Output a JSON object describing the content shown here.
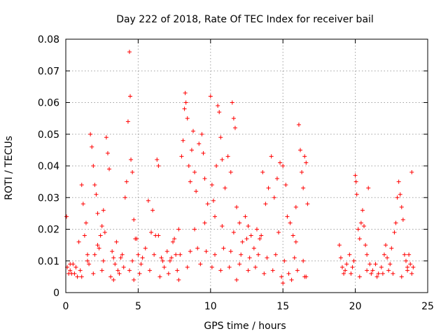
{
  "chart_data": {
    "type": "scatter",
    "title": "Day 222 of 2018, Rate Of TEC Index for receiver bail",
    "xlabel": "GPS time / hours",
    "ylabel": "ROTI / TECUs",
    "xlim": [
      0,
      25
    ],
    "ylim": [
      0,
      0.08
    ],
    "xticks": [
      0,
      5,
      10,
      15,
      20,
      25
    ],
    "xtick_labels": [
      "0",
      "5",
      "10",
      "15",
      "20",
      "25"
    ],
    "yticks": [
      0,
      0.01,
      0.02,
      0.03,
      0.04,
      0.05,
      0.06,
      0.07,
      0.08
    ],
    "ytick_labels": [
      "0",
      "0.01",
      "0.02",
      "0.03",
      "0.04",
      "0.05",
      "0.06",
      "0.07",
      "0.08"
    ],
    "grid": true,
    "marker": "+",
    "color": "#ff0000",
    "series": [
      {
        "name": "ROTI",
        "points": [
          [
            0.05,
            0.024
          ],
          [
            0.1,
            0.008
          ],
          [
            0.2,
            0.006
          ],
          [
            0.3,
            0.007
          ],
          [
            0.5,
            0.009
          ],
          [
            0.6,
            0.006
          ],
          [
            0.8,
            0.005
          ],
          [
            1.0,
            0.007
          ],
          [
            1.1,
            0.034
          ],
          [
            1.2,
            0.028
          ],
          [
            1.3,
            0.018
          ],
          [
            1.4,
            0.022
          ],
          [
            1.5,
            0.012
          ],
          [
            1.6,
            0.009
          ],
          [
            1.7,
            0.05
          ],
          [
            1.8,
            0.046
          ],
          [
            1.9,
            0.04
          ],
          [
            2.0,
            0.034
          ],
          [
            2.1,
            0.031
          ],
          [
            2.2,
            0.025
          ],
          [
            2.3,
            0.014
          ],
          [
            2.4,
            0.018
          ],
          [
            2.5,
            0.021
          ],
          [
            2.6,
            0.026
          ],
          [
            2.7,
            0.019
          ],
          [
            2.8,
            0.049
          ],
          [
            2.9,
            0.044
          ],
          [
            3.0,
            0.039
          ],
          [
            3.2,
            0.013
          ],
          [
            3.4,
            0.009
          ],
          [
            3.6,
            0.007
          ],
          [
            3.8,
            0.011
          ],
          [
            4.0,
            0.008
          ],
          [
            4.1,
            0.03
          ],
          [
            4.2,
            0.035
          ],
          [
            4.3,
            0.054
          ],
          [
            4.4,
            0.076
          ],
          [
            4.45,
            0.062
          ],
          [
            4.5,
            0.042
          ],
          [
            4.6,
            0.038
          ],
          [
            4.7,
            0.023
          ],
          [
            4.8,
            0.017
          ],
          [
            5.0,
            0.012
          ],
          [
            5.2,
            0.009
          ],
          [
            5.5,
            0.014
          ],
          [
            5.7,
            0.029
          ],
          [
            5.9,
            0.019
          ],
          [
            6.0,
            0.026
          ],
          [
            6.2,
            0.018
          ],
          [
            6.3,
            0.042
          ],
          [
            6.4,
            0.04
          ],
          [
            6.6,
            0.011
          ],
          [
            6.8,
            0.008
          ],
          [
            7.0,
            0.013
          ],
          [
            7.2,
            0.01
          ],
          [
            7.4,
            0.016
          ],
          [
            7.6,
            0.012
          ],
          [
            7.8,
            0.02
          ],
          [
            8.0,
            0.043
          ],
          [
            8.1,
            0.048
          ],
          [
            8.2,
            0.058
          ],
          [
            8.25,
            0.063
          ],
          [
            8.3,
            0.06
          ],
          [
            8.4,
            0.055
          ],
          [
            8.5,
            0.04
          ],
          [
            8.6,
            0.035
          ],
          [
            8.7,
            0.045
          ],
          [
            8.8,
            0.051
          ],
          [
            8.9,
            0.038
          ],
          [
            9.0,
            0.032
          ],
          [
            9.2,
            0.047
          ],
          [
            9.4,
            0.05
          ],
          [
            9.5,
            0.044
          ],
          [
            9.6,
            0.036
          ],
          [
            9.8,
            0.028
          ],
          [
            10.0,
            0.062
          ],
          [
            10.1,
            0.034
          ],
          [
            10.2,
            0.029
          ],
          [
            10.3,
            0.024
          ],
          [
            10.4,
            0.04
          ],
          [
            10.5,
            0.059
          ],
          [
            10.6,
            0.057
          ],
          [
            10.7,
            0.049
          ],
          [
            10.8,
            0.042
          ],
          [
            11.0,
            0.033
          ],
          [
            11.2,
            0.043
          ],
          [
            11.4,
            0.038
          ],
          [
            11.5,
            0.06
          ],
          [
            11.6,
            0.055
          ],
          [
            11.7,
            0.052
          ],
          [
            11.8,
            0.027
          ],
          [
            12.0,
            0.022
          ],
          [
            12.2,
            0.016
          ],
          [
            12.4,
            0.024
          ],
          [
            12.6,
            0.021
          ],
          [
            12.8,
            0.018
          ],
          [
            13.0,
            0.014
          ],
          [
            13.2,
            0.02
          ],
          [
            13.4,
            0.017
          ],
          [
            13.6,
            0.038
          ],
          [
            13.8,
            0.028
          ],
          [
            14.0,
            0.033
          ],
          [
            14.2,
            0.043
          ],
          [
            14.4,
            0.03
          ],
          [
            14.6,
            0.036
          ],
          [
            14.8,
            0.041
          ],
          [
            15.0,
            0.04
          ],
          [
            15.2,
            0.034
          ],
          [
            15.3,
            0.024
          ],
          [
            15.5,
            0.022
          ],
          [
            15.7,
            0.018
          ],
          [
            15.9,
            0.027
          ],
          [
            16.1,
            0.053
          ],
          [
            16.2,
            0.045
          ],
          [
            16.3,
            0.038
          ],
          [
            16.4,
            0.033
          ],
          [
            16.5,
            0.043
          ],
          [
            16.6,
            0.041
          ],
          [
            16.7,
            0.028
          ],
          [
            0.3,
            0.009
          ],
          [
            0.7,
            0.008
          ],
          [
            1.5,
            0.01
          ],
          [
            2.0,
            0.012
          ],
          [
            2.6,
            0.01
          ],
          [
            3.3,
            0.011
          ],
          [
            3.9,
            0.012
          ],
          [
            4.6,
            0.01
          ],
          [
            5.3,
            0.011
          ],
          [
            6.1,
            0.012
          ],
          [
            6.7,
            0.01
          ],
          [
            7.3,
            0.011
          ],
          [
            7.9,
            0.012
          ],
          [
            8.6,
            0.013
          ],
          [
            9.1,
            0.014
          ],
          [
            9.7,
            0.013
          ],
          [
            10.3,
            0.012
          ],
          [
            10.9,
            0.014
          ],
          [
            11.4,
            0.013
          ],
          [
            12.1,
            0.012
          ],
          [
            12.7,
            0.011
          ],
          [
            13.3,
            0.012
          ],
          [
            13.9,
            0.011
          ],
          [
            14.5,
            0.012
          ],
          [
            15.1,
            0.01
          ],
          [
            15.8,
            0.011
          ],
          [
            16.4,
            0.01
          ],
          [
            0.4,
            0.006
          ],
          [
            1.1,
            0.005
          ],
          [
            1.9,
            0.006
          ],
          [
            2.5,
            0.007
          ],
          [
            3.1,
            0.005
          ],
          [
            3.7,
            0.006
          ],
          [
            4.4,
            0.007
          ],
          [
            5.1,
            0.006
          ],
          [
            5.8,
            0.007
          ],
          [
            6.5,
            0.005
          ],
          [
            7.1,
            0.006
          ],
          [
            7.7,
            0.007
          ],
          [
            8.4,
            0.008
          ],
          [
            9.3,
            0.009
          ],
          [
            10.1,
            0.008
          ],
          [
            10.7,
            0.007
          ],
          [
            11.3,
            0.008
          ],
          [
            12.0,
            0.009
          ],
          [
            12.6,
            0.007
          ],
          [
            13.1,
            0.008
          ],
          [
            13.7,
            0.006
          ],
          [
            14.3,
            0.007
          ],
          [
            14.9,
            0.005
          ],
          [
            15.4,
            0.006
          ],
          [
            16.0,
            0.007
          ],
          [
            16.6,
            0.005
          ],
          [
            3.3,
            0.004
          ],
          [
            4.7,
            0.004
          ],
          [
            7.8,
            0.004
          ],
          [
            11.8,
            0.004
          ],
          [
            15.0,
            0.003
          ],
          [
            15.6,
            0.004
          ],
          [
            16.5,
            0.005
          ],
          [
            0.9,
            0.016
          ],
          [
            2.2,
            0.015
          ],
          [
            3.5,
            0.016
          ],
          [
            4.9,
            0.017
          ],
          [
            6.4,
            0.018
          ],
          [
            7.5,
            0.017
          ],
          [
            8.9,
            0.02
          ],
          [
            9.6,
            0.022
          ],
          [
            10.8,
            0.021
          ],
          [
            11.6,
            0.019
          ],
          [
            12.5,
            0.017
          ],
          [
            13.5,
            0.018
          ],
          [
            14.7,
            0.019
          ],
          [
            15.9,
            0.016
          ],
          [
            18.9,
            0.015
          ],
          [
            19.0,
            0.011
          ],
          [
            19.1,
            0.008
          ],
          [
            19.2,
            0.006
          ],
          [
            19.4,
            0.009
          ],
          [
            19.6,
            0.012
          ],
          [
            19.8,
            0.008
          ],
          [
            19.9,
            0.01
          ],
          [
            20.0,
            0.037
          ],
          [
            20.05,
            0.035
          ],
          [
            20.1,
            0.031
          ],
          [
            20.2,
            0.02
          ],
          [
            20.3,
            0.017
          ],
          [
            20.4,
            0.022
          ],
          [
            20.5,
            0.026
          ],
          [
            20.6,
            0.021
          ],
          [
            20.7,
            0.015
          ],
          [
            20.8,
            0.012
          ],
          [
            20.9,
            0.033
          ],
          [
            21.0,
            0.009
          ],
          [
            21.2,
            0.007
          ],
          [
            21.4,
            0.009
          ],
          [
            21.6,
            0.006
          ],
          [
            21.8,
            0.008
          ],
          [
            22.0,
            0.012
          ],
          [
            22.1,
            0.015
          ],
          [
            22.2,
            0.011
          ],
          [
            22.4,
            0.009
          ],
          [
            22.5,
            0.014
          ],
          [
            22.7,
            0.019
          ],
          [
            22.8,
            0.022
          ],
          [
            22.9,
            0.03
          ],
          [
            23.0,
            0.035
          ],
          [
            23.1,
            0.031
          ],
          [
            23.2,
            0.027
          ],
          [
            23.3,
            0.023
          ],
          [
            23.4,
            0.012
          ],
          [
            23.5,
            0.01
          ],
          [
            23.6,
            0.008
          ],
          [
            23.7,
            0.012
          ],
          [
            23.8,
            0.009
          ],
          [
            23.9,
            0.038
          ],
          [
            24.0,
            0.008
          ],
          [
            19.3,
            0.007
          ],
          [
            19.7,
            0.006
          ],
          [
            20.3,
            0.005
          ],
          [
            20.8,
            0.007
          ],
          [
            21.1,
            0.006
          ],
          [
            21.5,
            0.005
          ],
          [
            21.9,
            0.006
          ],
          [
            22.3,
            0.007
          ],
          [
            22.6,
            0.006
          ],
          [
            23.2,
            0.005
          ],
          [
            23.6,
            0.007
          ],
          [
            23.9,
            0.006
          ]
        ]
      }
    ]
  }
}
